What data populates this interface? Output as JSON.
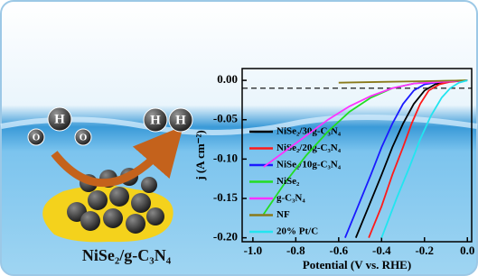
{
  "chart_data": {
    "type": "line",
    "caption": "NiSe₂/g-C₃N₄",
    "molecule_labels": [
      "O",
      "H",
      "O",
      "H",
      "H"
    ],
    "x_label": "Potential (V vs. RHE)",
    "y_label": "j (A cm⁻²)",
    "xlim": [
      -1.05,
      0.02
    ],
    "ylim": [
      -0.205,
      0.015
    ],
    "xticks": [
      {
        "value": -1,
        "label": "-1.0"
      },
      -0.8,
      -0.6,
      -0.4,
      -0.2,
      {
        "value": 0,
        "label": "0.0"
      }
    ],
    "yticks": [
      {
        "value": 0,
        "label": "0.00"
      },
      -0.05,
      {
        "value": -0.1,
        "label": "-0.10"
      },
      -0.15,
      {
        "value": -0.2,
        "label": "-0.20"
      }
    ],
    "reference_line": -0.01,
    "series": [
      {
        "name": "NiSe₂/30g-C₃N₄",
        "color": "#000000",
        "x": [
          -0.52,
          -0.46,
          -0.4,
          -0.35,
          -0.3,
          -0.25,
          -0.2,
          -0.15,
          -0.1,
          0
        ],
        "values": [
          -0.2,
          -0.16,
          -0.12,
          -0.085,
          -0.055,
          -0.03,
          -0.013,
          -0.005,
          -0.002,
          0
        ]
      },
      {
        "name": "NiSe₂/20g-C₃N₄",
        "color": "#ff1a1a",
        "x": [
          -0.46,
          -0.4,
          -0.35,
          -0.3,
          -0.26,
          -0.22,
          -0.18,
          -0.13,
          -0.08,
          0
        ],
        "values": [
          -0.2,
          -0.16,
          -0.12,
          -0.085,
          -0.055,
          -0.03,
          -0.013,
          -0.005,
          -0.002,
          0
        ]
      },
      {
        "name": "NiSe₂/10g-C₃N₄",
        "color": "#1a1aff",
        "x": [
          -0.57,
          -0.51,
          -0.45,
          -0.4,
          -0.35,
          -0.3,
          -0.25,
          -0.2,
          -0.13,
          0
        ],
        "values": [
          -0.2,
          -0.16,
          -0.12,
          -0.085,
          -0.055,
          -0.03,
          -0.013,
          -0.005,
          -0.002,
          0
        ]
      },
      {
        "name": "NiSe₂",
        "color": "#22dd22",
        "x": [
          -0.95,
          -0.85,
          -0.75,
          -0.65,
          -0.55,
          -0.45,
          -0.35,
          -0.25,
          -0.15,
          0
        ],
        "values": [
          -0.17,
          -0.13,
          -0.095,
          -0.065,
          -0.04,
          -0.022,
          -0.01,
          -0.004,
          -0.001,
          0
        ]
      },
      {
        "name": "g-C₃N₄",
        "color": "#ff33ff",
        "x": [
          -0.95,
          -0.85,
          -0.75,
          -0.65,
          -0.55,
          -0.45,
          -0.35,
          -0.25,
          0
        ],
        "values": [
          -0.11,
          -0.09,
          -0.07,
          -0.05,
          -0.033,
          -0.02,
          -0.01,
          -0.004,
          0
        ]
      },
      {
        "name": "NF",
        "color": "#8a7a1a",
        "x": [
          -0.6,
          -0.4,
          -0.2,
          0
        ],
        "values": [
          -0.003,
          -0.002,
          -0.001,
          0
        ]
      },
      {
        "name": "20% Pt/C",
        "color": "#22e5f0",
        "x": [
          -0.4,
          -0.33,
          -0.27,
          -0.22,
          -0.17,
          -0.12,
          -0.08,
          -0.04,
          0
        ],
        "values": [
          -0.2,
          -0.15,
          -0.11,
          -0.075,
          -0.045,
          -0.022,
          -0.01,
          -0.003,
          0
        ]
      }
    ]
  }
}
